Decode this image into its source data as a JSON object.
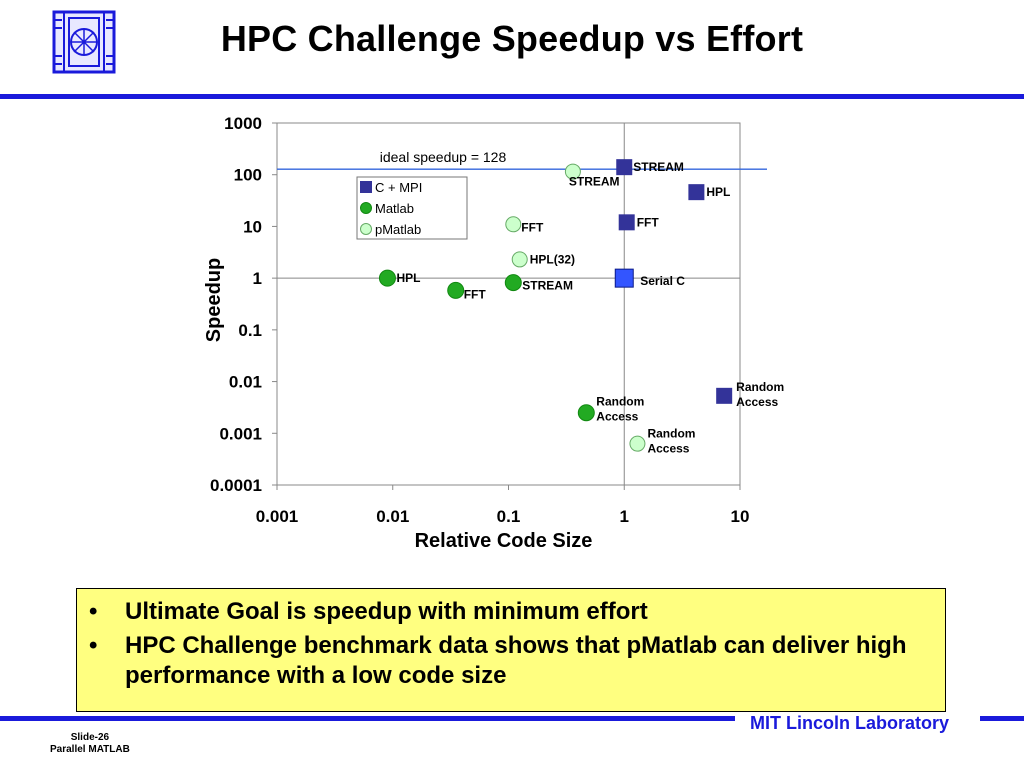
{
  "slide": {
    "title": "HPC Challenge Speedup vs Effort",
    "bullets": [
      "Ultimate Goal is speedup with minimum effort",
      "HPC Challenge benchmark data shows that pMatlab can deliver high performance with a low code size"
    ],
    "bullet_glyph": "•",
    "footer_lab": "MIT Lincoln Laboratory",
    "footer_slide_number": "Slide-26",
    "footer_slide_title": "Parallel MATLAB",
    "accent_color": "#1a1adb",
    "note_bg_color": "#ffff80"
  },
  "chart_data": {
    "type": "scatter",
    "title": "",
    "xlabel": "Relative Code Size",
    "ylabel": "Speedup",
    "x_scale": "log",
    "y_scale": "log",
    "xlim": [
      0.001,
      10
    ],
    "ylim": [
      0.0001,
      1000
    ],
    "x_ticks": [
      "0.001",
      "0.01",
      "0.1",
      "1",
      "10"
    ],
    "y_ticks": [
      "0.0001",
      "0.001",
      "0.01",
      "0.1",
      "1",
      "10",
      "100",
      "1000"
    ],
    "grid": "x=1 and y=1 lines",
    "reference_line": {
      "label": "ideal speedup = 128",
      "y": 128
    },
    "legend_position": "top-left inside plot",
    "series": [
      {
        "name": "C + MPI",
        "marker": "square",
        "color": "#333399",
        "points": [
          {
            "label": "STREAM",
            "x": 1.0,
            "y": 140
          },
          {
            "label": "HPL",
            "x": 4.2,
            "y": 46
          },
          {
            "label": "FFT",
            "x": 1.05,
            "y": 12
          },
          {
            "label": "Random\nAccess",
            "x": 7.3,
            "y": 0.0053
          }
        ]
      },
      {
        "name": "Matlab",
        "marker": "circle",
        "color": "#22aa22",
        "points": [
          {
            "label": "HPL",
            "x": 0.009,
            "y": 1.0
          },
          {
            "label": "FFT",
            "x": 0.035,
            "y": 0.58
          },
          {
            "label": "STREAM",
            "x": 0.11,
            "y": 0.82
          },
          {
            "label": "Random\nAccess",
            "x": 0.47,
            "y": 0.0025
          }
        ]
      },
      {
        "name": "pMatlab",
        "marker": "circle-open",
        "color": "#ccffcc",
        "points": [
          {
            "label": "STREAM",
            "x": 0.36,
            "y": 115
          },
          {
            "label": "FFT",
            "x": 0.11,
            "y": 11
          },
          {
            "label": "HPL(32)",
            "x": 0.125,
            "y": 2.3
          },
          {
            "label": "Random\nAccess",
            "x": 1.3,
            "y": 0.00063
          }
        ]
      },
      {
        "name": "",
        "marker": "square-light",
        "color": "#3355ff",
        "points": [
          {
            "label": "Serial C",
            "x": 1.0,
            "y": 1.0
          }
        ]
      }
    ]
  }
}
